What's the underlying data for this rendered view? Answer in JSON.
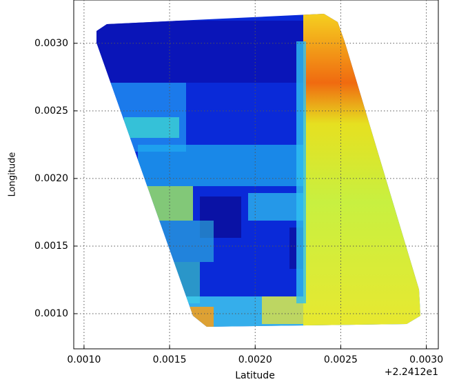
{
  "chart_data": {
    "type": "heatmap",
    "xlabel": "Latitude",
    "ylabel": "Longitude",
    "x_offset_text": "+2.2412e1",
    "xlim": [
      0.00094,
      0.00307
    ],
    "ylim": [
      0.00074,
      0.00332
    ],
    "xticks": [
      {
        "value": 0.001,
        "label": "0.0010"
      },
      {
        "value": 0.0015,
        "label": "0.0015"
      },
      {
        "value": 0.002,
        "label": "0.0020"
      },
      {
        "value": 0.0025,
        "label": "0.0025"
      },
      {
        "value": 0.003,
        "label": "0.0030"
      }
    ],
    "yticks": [
      {
        "value": 0.001,
        "label": "0.0010"
      },
      {
        "value": 0.0015,
        "label": "0.0015"
      },
      {
        "value": 0.002,
        "label": "0.0020"
      },
      {
        "value": 0.0025,
        "label": "0.0025"
      },
      {
        "value": 0.003,
        "label": "0.0030"
      }
    ],
    "grid": true
  }
}
